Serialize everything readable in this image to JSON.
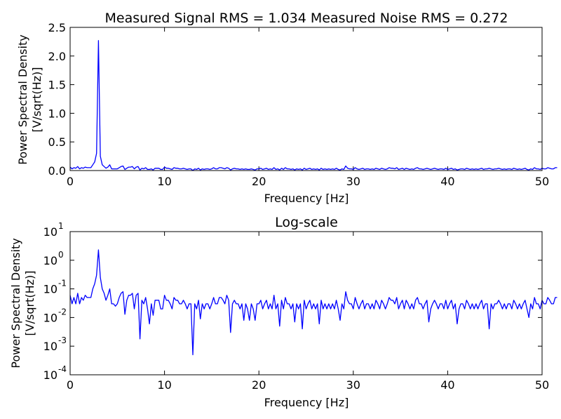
{
  "chart_data": [
    {
      "type": "line",
      "title": "Measured Signal RMS = 1.034 Measured Noise RMS = 0.272",
      "xlabel": "Frequency [Hz]",
      "ylabel": [
        "Power Spectral Density",
        "[V/sqrt(Hz)]"
      ],
      "xlim": [
        0,
        50
      ],
      "ylim": [
        0,
        2.5
      ],
      "yscale": "linear",
      "grid": false,
      "x_ticks": [
        "0",
        "10",
        "20",
        "30",
        "40",
        "50"
      ],
      "y_ticks": [
        "0.0",
        "0.5",
        "1.0",
        "1.5",
        "2.0",
        "2.5"
      ],
      "series": [
        {
          "color": "#0000ff",
          "x_start": 0,
          "x_step": 0.2,
          "values": [
            0.06,
            0.03,
            0.05,
            0.04,
            0.07,
            0.03,
            0.05,
            0.04,
            0.06,
            0.05,
            0.05,
            0.05,
            0.1,
            0.15,
            0.3,
            2.27,
            0.25,
            0.1,
            0.07,
            0.04,
            0.06,
            0.1,
            0.03,
            0.03,
            0.03,
            0.03,
            0.05,
            0.07,
            0.08,
            0.02,
            0.04,
            0.06,
            0.06,
            0.07,
            0.03,
            0.06,
            0.07,
            0.01,
            0.04,
            0.03,
            0.05,
            0.02,
            0.02,
            0.03,
            0.01,
            0.04,
            0.04,
            0.04,
            0.02,
            0.02,
            0.06,
            0.04,
            0.04,
            0.03,
            0.02,
            0.05,
            0.04,
            0.04,
            0.03,
            0.03,
            0.04,
            0.03,
            0.02,
            0.03,
            0.03,
            0.001,
            0.03,
            0.02,
            0.04,
            0.01,
            0.03,
            0.02,
            0.03,
            0.03,
            0.02,
            0.03,
            0.05,
            0.03,
            0.03,
            0.05,
            0.05,
            0.04,
            0.03,
            0.05,
            0.04,
            0.01,
            0.03,
            0.04,
            0.03,
            0.03,
            0.02,
            0.03,
            0.02,
            0.03,
            0.02,
            0.02,
            0.03,
            0.02,
            0.01,
            0.03,
            0.03,
            0.04,
            0.02,
            0.03,
            0.04,
            0.02,
            0.03,
            0.02,
            0.05,
            0.02,
            0.03,
            0.01,
            0.04,
            0.02,
            0.05,
            0.03,
            0.03,
            0.02,
            0.03,
            0.01,
            0.03,
            0.02,
            0.03,
            0.01,
            0.04,
            0.02,
            0.03,
            0.04,
            0.02,
            0.03,
            0.02,
            0.03,
            0.01,
            0.04,
            0.02,
            0.03,
            0.02,
            0.03,
            0.02,
            0.03,
            0.02,
            0.04,
            0.02,
            0.01,
            0.03,
            0.02,
            0.08,
            0.04,
            0.03,
            0.03,
            0.02,
            0.05,
            0.03,
            0.02,
            0.03,
            0.04,
            0.02,
            0.03,
            0.03,
            0.02,
            0.03,
            0.02,
            0.04,
            0.03,
            0.02,
            0.04,
            0.03,
            0.02,
            0.03,
            0.05,
            0.04,
            0.04,
            0.03,
            0.05,
            0.02,
            0.03,
            0.04,
            0.02,
            0.04,
            0.03,
            0.02,
            0.03,
            0.02,
            0.04,
            0.05,
            0.03,
            0.03,
            0.02,
            0.03,
            0.04,
            0.03,
            0.02,
            0.03,
            0.04,
            0.03,
            0.02,
            0.03,
            0.03,
            0.02,
            0.04,
            0.02,
            0.03,
            0.04,
            0.02,
            0.03,
            0.01,
            0.02,
            0.03,
            0.03,
            0.02,
            0.04,
            0.03,
            0.02,
            0.03,
            0.02,
            0.03,
            0.02,
            0.03,
            0.04,
            0.02,
            0.03,
            0.03,
            0.04,
            0.03,
            0.02,
            0.03,
            0.03,
            0.04,
            0.03,
            0.02,
            0.03,
            0.02,
            0.03,
            0.03,
            0.02,
            0.04,
            0.03,
            0.02,
            0.03,
            0.02,
            0.03,
            0.04,
            0.02,
            0.01,
            0.03,
            0.02,
            0.05,
            0.03,
            0.03,
            0.02,
            0.04,
            0.03,
            0.03,
            0.05,
            0.04,
            0.03,
            0.03,
            0.05,
            0.05
          ]
        }
      ]
    },
    {
      "type": "line",
      "title": "Log-scale",
      "xlabel": "Frequency [Hz]",
      "ylabel": [
        "Power Spectral Density",
        "[V/sqrt(Hz)]"
      ],
      "xlim": [
        0,
        50
      ],
      "ylim": [
        0.0001,
        10
      ],
      "yscale": "log",
      "grid": false,
      "x_ticks": [
        "0",
        "10",
        "20",
        "30",
        "40",
        "50"
      ],
      "y_ticks": [
        {
          "base": "10",
          "exp": "-4"
        },
        {
          "base": "10",
          "exp": "-3"
        },
        {
          "base": "10",
          "exp": "-2"
        },
        {
          "base": "10",
          "exp": "-1"
        },
        {
          "base": "10",
          "exp": "0"
        },
        {
          "base": "10",
          "exp": "1"
        }
      ],
      "series": [
        {
          "color": "#0000ff",
          "x_start": 0,
          "x_step": 0.2,
          "values": [
            0.06,
            0.03,
            0.05,
            0.03,
            0.07,
            0.03,
            0.05,
            0.04,
            0.06,
            0.05,
            0.05,
            0.05,
            0.1,
            0.15,
            0.3,
            2.3,
            0.25,
            0.1,
            0.07,
            0.04,
            0.06,
            0.1,
            0.03,
            0.03,
            0.025,
            0.03,
            0.05,
            0.07,
            0.08,
            0.013,
            0.04,
            0.06,
            0.06,
            0.07,
            0.02,
            0.06,
            0.07,
            0.0018,
            0.04,
            0.03,
            0.05,
            0.02,
            0.006,
            0.03,
            0.012,
            0.04,
            0.04,
            0.04,
            0.02,
            0.02,
            0.06,
            0.04,
            0.04,
            0.03,
            0.02,
            0.05,
            0.04,
            0.04,
            0.03,
            0.03,
            0.04,
            0.03,
            0.02,
            0.03,
            0.03,
            0.0005,
            0.03,
            0.02,
            0.04,
            0.009,
            0.03,
            0.02,
            0.03,
            0.03,
            0.02,
            0.03,
            0.05,
            0.03,
            0.03,
            0.05,
            0.05,
            0.04,
            0.03,
            0.06,
            0.04,
            0.003,
            0.03,
            0.04,
            0.03,
            0.03,
            0.02,
            0.03,
            0.008,
            0.03,
            0.02,
            0.008,
            0.03,
            0.02,
            0.008,
            0.03,
            0.03,
            0.04,
            0.02,
            0.03,
            0.04,
            0.02,
            0.03,
            0.02,
            0.06,
            0.02,
            0.03,
            0.005,
            0.04,
            0.02,
            0.05,
            0.03,
            0.03,
            0.02,
            0.03,
            0.007,
            0.03,
            0.02,
            0.03,
            0.004,
            0.04,
            0.02,
            0.03,
            0.04,
            0.02,
            0.03,
            0.02,
            0.03,
            0.006,
            0.04,
            0.02,
            0.03,
            0.02,
            0.03,
            0.02,
            0.03,
            0.02,
            0.04,
            0.02,
            0.008,
            0.03,
            0.02,
            0.08,
            0.04,
            0.03,
            0.03,
            0.02,
            0.05,
            0.03,
            0.02,
            0.03,
            0.04,
            0.02,
            0.03,
            0.03,
            0.02,
            0.03,
            0.02,
            0.04,
            0.03,
            0.02,
            0.04,
            0.03,
            0.02,
            0.03,
            0.05,
            0.04,
            0.04,
            0.03,
            0.05,
            0.02,
            0.03,
            0.04,
            0.02,
            0.04,
            0.03,
            0.02,
            0.03,
            0.02,
            0.04,
            0.05,
            0.03,
            0.03,
            0.02,
            0.03,
            0.04,
            0.007,
            0.02,
            0.03,
            0.04,
            0.03,
            0.02,
            0.03,
            0.03,
            0.02,
            0.04,
            0.02,
            0.03,
            0.04,
            0.02,
            0.03,
            0.006,
            0.02,
            0.03,
            0.03,
            0.02,
            0.04,
            0.03,
            0.02,
            0.03,
            0.02,
            0.03,
            0.02,
            0.03,
            0.04,
            0.02,
            0.03,
            0.03,
            0.004,
            0.03,
            0.02,
            0.03,
            0.03,
            0.04,
            0.03,
            0.02,
            0.03,
            0.02,
            0.03,
            0.03,
            0.02,
            0.04,
            0.03,
            0.02,
            0.03,
            0.02,
            0.03,
            0.04,
            0.02,
            0.01,
            0.03,
            0.02,
            0.05,
            0.03,
            0.03,
            0.02,
            0.04,
            0.03,
            0.03,
            0.05,
            0.04,
            0.03,
            0.03,
            0.05,
            0.05
          ]
        }
      ]
    }
  ]
}
